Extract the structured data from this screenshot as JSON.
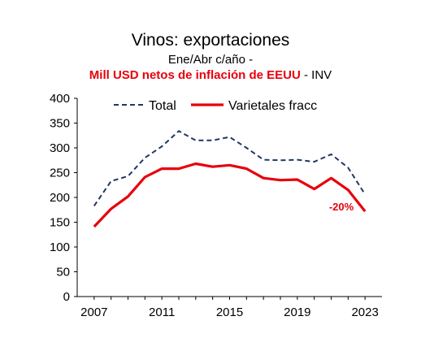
{
  "chart_data": {
    "type": "line",
    "title": "Vinos: exportaciones",
    "subtitle_line1": "Ene/Abr c/año -",
    "subtitle_line2_highlight": "Mill USD netos de inflación de EEUU",
    "subtitle_line2_rest": " - INV",
    "xlabel": "",
    "ylabel": "",
    "x": [
      2007,
      2008,
      2009,
      2010,
      2011,
      2012,
      2013,
      2014,
      2015,
      2016,
      2017,
      2018,
      2019,
      2020,
      2021,
      2022,
      2023
    ],
    "x_ticks": [
      2007,
      2011,
      2015,
      2019,
      2023
    ],
    "ylim": [
      0,
      400
    ],
    "y_ticks": [
      0,
      50,
      100,
      150,
      200,
      250,
      300,
      350,
      400
    ],
    "grid": false,
    "legend_position": "top",
    "series": [
      {
        "name": "Total",
        "style": "dashed",
        "color": "#1f3864",
        "values": [
          183,
          233,
          243,
          280,
          303,
          334,
          315,
          315,
          322,
          300,
          276,
          275,
          276,
          272,
          287,
          260,
          206
        ]
      },
      {
        "name": "Varietales fracc",
        "style": "solid",
        "color": "#e8000b",
        "values": [
          141,
          177,
          202,
          241,
          258,
          258,
          268,
          262,
          265,
          258,
          239,
          235,
          236,
          217,
          239,
          215,
          172
        ]
      }
    ],
    "annotations": [
      {
        "text": "-20%",
        "x": 2021.6,
        "y": 182,
        "color": "#e8000b"
      }
    ]
  }
}
